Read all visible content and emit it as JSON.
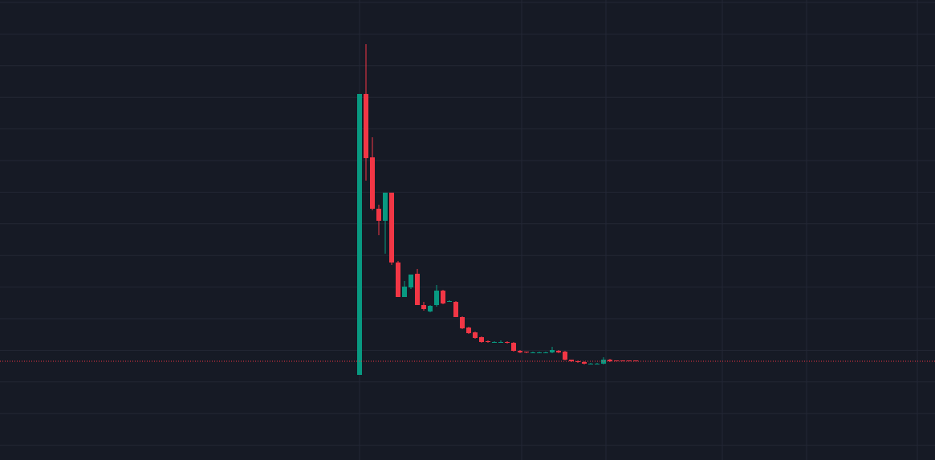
{
  "chart_data": {
    "type": "candlestick",
    "up_color": "#089981",
    "down_color": "#f23645",
    "grid": true,
    "ylim": [
      0,
      573
    ],
    "last_price": 123,
    "open": [
      106,
      456,
      377,
      313,
      298,
      333,
      246,
      203,
      215,
      232,
      193,
      185,
      193,
      211,
      197,
      197,
      178,
      165,
      159,
      153,
      148,
      147,
      147,
      147,
      146,
      136,
      135,
      134,
      134,
      134,
      134,
      136,
      135,
      125,
      123,
      122,
      120,
      120,
      120,
      125,
      124,
      124,
      124,
      124
    ],
    "high": [
      456,
      518,
      402,
      318,
      333,
      333,
      248,
      223,
      231,
      238,
      197,
      193,
      218,
      212,
      199,
      198,
      179,
      166,
      160,
      154,
      149,
      148,
      149,
      148,
      147,
      137,
      135,
      135,
      135,
      135,
      141,
      137,
      136,
      125,
      124,
      123,
      121,
      121,
      128,
      126,
      124,
      124,
      124,
      124
    ],
    "low": [
      106,
      348,
      311,
      280,
      257,
      243,
      203,
      203,
      213,
      193,
      186,
      184,
      191,
      194,
      197,
      178,
      163,
      157,
      151,
      146,
      146,
      146,
      146,
      145,
      135,
      133,
      133,
      133,
      133,
      133,
      133,
      133,
      124,
      122,
      121,
      119,
      119,
      119,
      119,
      122,
      123,
      123,
      123,
      123
    ],
    "close": [
      456,
      376,
      313,
      298,
      333,
      246,
      203,
      216,
      231,
      193,
      188,
      192,
      211,
      195,
      198,
      178,
      164,
      158,
      152,
      147,
      147,
      147,
      147,
      146,
      136,
      134,
      134,
      134,
      134,
      134,
      137,
      134,
      125,
      123,
      122,
      120,
      120,
      120,
      125,
      123,
      123,
      123,
      123,
      123
    ]
  }
}
